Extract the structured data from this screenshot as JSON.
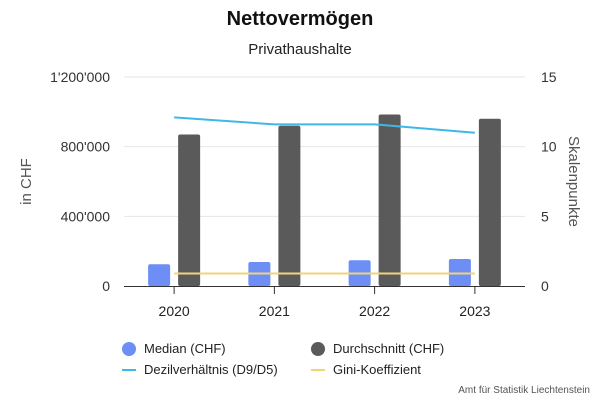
{
  "chart_data": {
    "type": "bar",
    "title": "Nettovermögen",
    "subtitle": "Privathaushalte",
    "categories": [
      "2020",
      "2021",
      "2022",
      "2023"
    ],
    "ylabel": "in CHF",
    "ylabel_right": "Skalenpunkte",
    "ylim": [
      0,
      1200000
    ],
    "ylim_right": [
      0,
      15
    ],
    "yticks": [
      "0",
      "400'000",
      "800'000",
      "1'200'000"
    ],
    "yticks_right": [
      "0",
      "5",
      "10",
      "15"
    ],
    "series": [
      {
        "name": "Median (CHF)",
        "type": "bar",
        "axis": "left",
        "color": "#6C8EF5",
        "values": [
          125000,
          138000,
          148000,
          155000
        ]
      },
      {
        "name": "Durchschnitt (CHF)",
        "type": "bar",
        "axis": "left",
        "color": "#5A5A5A",
        "values": [
          870000,
          920000,
          985000,
          960000
        ]
      },
      {
        "name": "Dezilverhältnis (D9/D5)",
        "type": "line",
        "axis": "right",
        "color": "#3DB8E8",
        "values": [
          12.1,
          11.6,
          11.6,
          11.0
        ]
      },
      {
        "name": "Gini-Koeffizient",
        "type": "line",
        "axis": "right",
        "color": "#F2D478",
        "values": [
          0.9,
          0.9,
          0.9,
          0.9
        ]
      }
    ],
    "grid": true,
    "legend_position": "bottom"
  },
  "credits": "Amt für Statistik Liechtenstein"
}
